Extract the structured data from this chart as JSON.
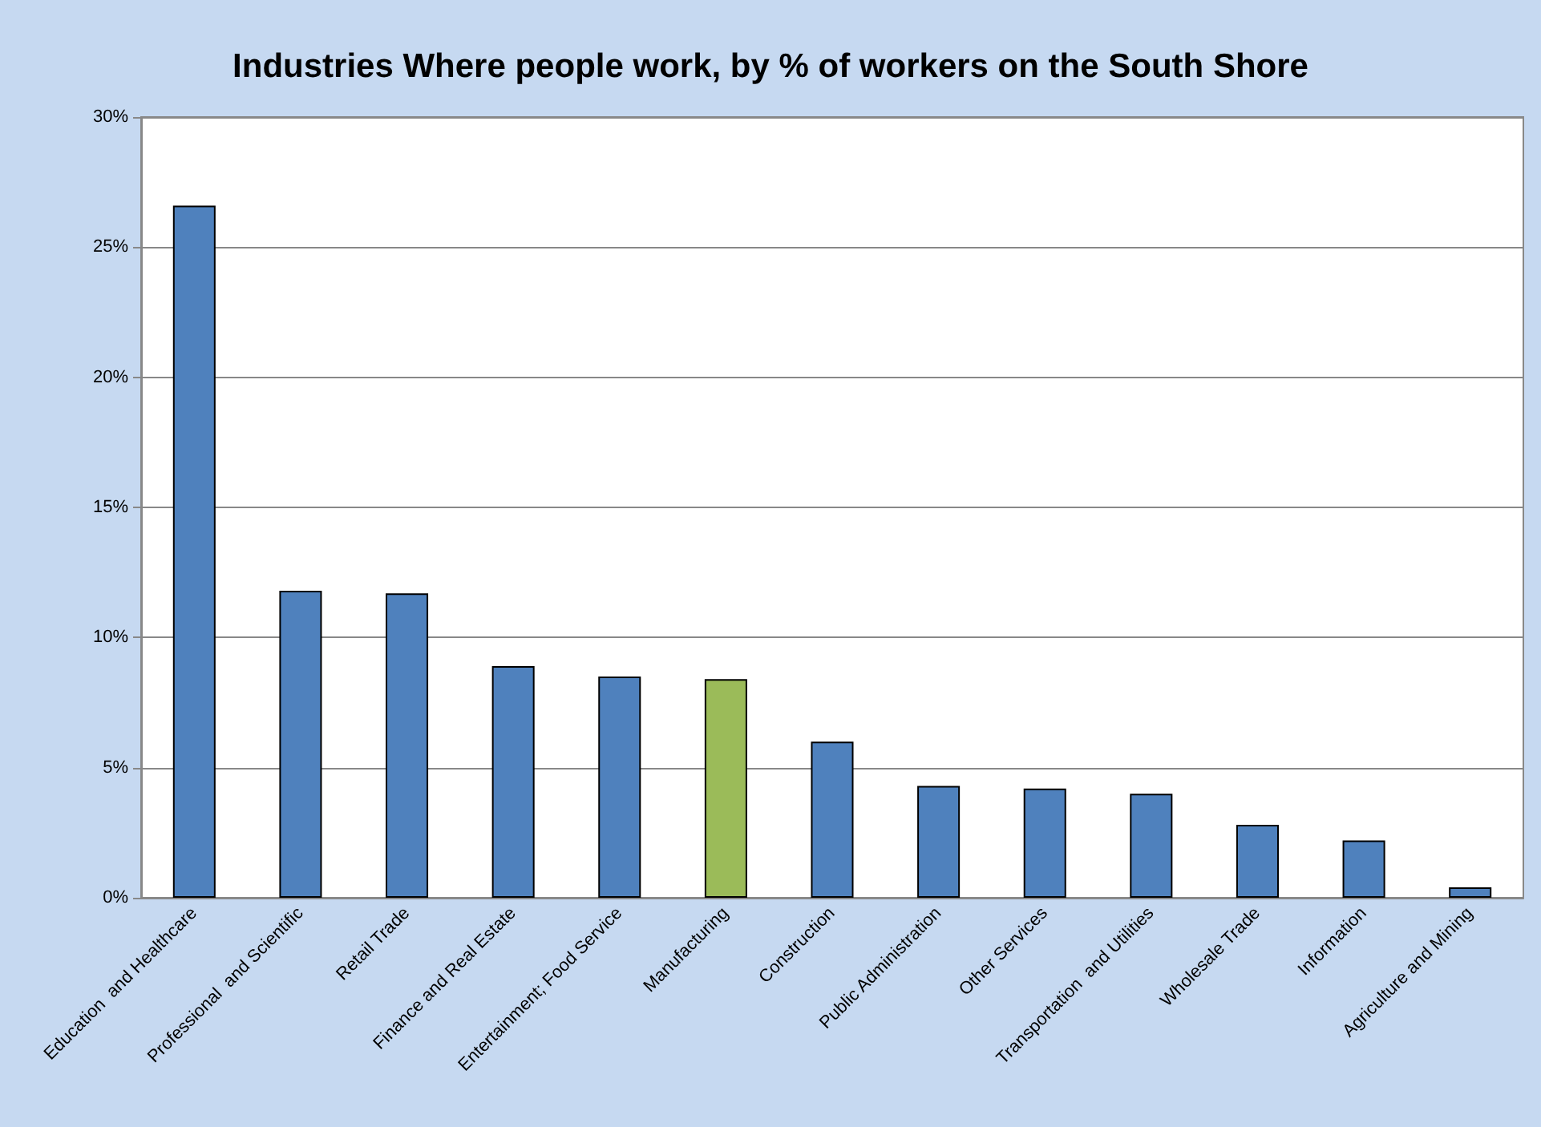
{
  "chart_data": {
    "type": "bar",
    "title": "Industries Where people work, by % of workers on the South Shore",
    "categories": [
      "Education  and Healthcare",
      "Professional  and Scientific",
      "Retail Trade",
      "Finance and Real Estate",
      "Entertainment; Food Service",
      "Manufacturing",
      "Construction",
      "Public Administration",
      "Other Services",
      "Transportation  and Utilities",
      "Wholesale Trade",
      "Information",
      "Agriculture and Mining"
    ],
    "values": [
      26.6,
      11.8,
      11.7,
      8.9,
      8.5,
      8.4,
      6.0,
      4.3,
      4.2,
      4.0,
      2.8,
      2.2,
      0.4
    ],
    "colors": [
      "#4f81bd",
      "#4f81bd",
      "#4f81bd",
      "#4f81bd",
      "#4f81bd",
      "#9bbb59",
      "#4f81bd",
      "#4f81bd",
      "#4f81bd",
      "#4f81bd",
      "#4f81bd",
      "#4f81bd",
      "#4f81bd"
    ],
    "ylim": [
      0,
      30
    ],
    "yticks": [
      {
        "value": 0,
        "label": "0%"
      },
      {
        "value": 5,
        "label": "5%"
      },
      {
        "value": 10,
        "label": "10%"
      },
      {
        "value": 15,
        "label": "15%"
      },
      {
        "value": 20,
        "label": "20%"
      },
      {
        "value": 25,
        "label": "25%"
      },
      {
        "value": 30,
        "label": "30%"
      }
    ],
    "grid": "y"
  }
}
